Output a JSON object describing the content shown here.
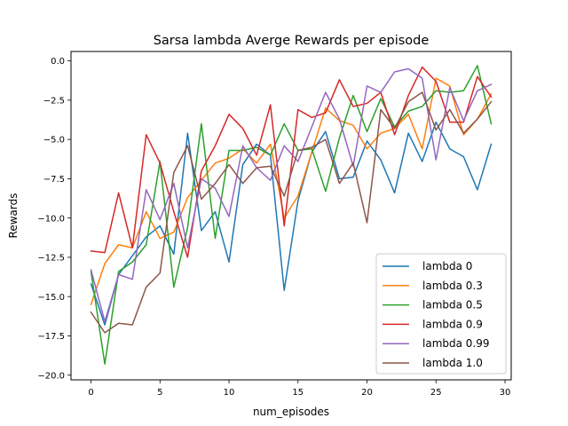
{
  "chart_data": {
    "type": "line",
    "title": "Sarsa lambda Averge Rewards per episode",
    "xlabel": "num_episodes",
    "ylabel": "Rewards",
    "xlim": [
      -1.45,
      30.45
    ],
    "ylim": [
      -20.3,
      0.6
    ],
    "xticks": [
      0,
      5,
      10,
      15,
      20,
      25,
      30
    ],
    "yticks": [
      0.0,
      -2.5,
      -5.0,
      -7.5,
      -10.0,
      -12.5,
      -15.0,
      -17.5,
      -20.0
    ],
    "xtick_labels": [
      "0",
      "5",
      "10",
      "15",
      "20",
      "25",
      "30"
    ],
    "ytick_labels": [
      "0.0",
      "−2.5",
      "−5.0",
      "−7.5",
      "−10.0",
      "−12.5",
      "−15.0",
      "−17.5",
      "−20.0"
    ],
    "grid": false,
    "legend_position": "lower right",
    "x": [
      0,
      1,
      2,
      3,
      4,
      5,
      6,
      7,
      8,
      9,
      10,
      11,
      12,
      13,
      14,
      15,
      16,
      17,
      18,
      19,
      20,
      21,
      22,
      23,
      24,
      25,
      26,
      27,
      28,
      29
    ],
    "series": [
      {
        "name": "lambda 0",
        "color": "#1f77b4",
        "values": [
          -14.2,
          -16.8,
          -13.6,
          -12.4,
          -11.2,
          -10.5,
          -12.3,
          -4.6,
          -10.8,
          -9.6,
          -12.8,
          -6.6,
          -5.3,
          -6.0,
          -14.6,
          -8.9,
          -5.8,
          -4.5,
          -7.5,
          -7.4,
          -5.1,
          -6.3,
          -8.4,
          -4.6,
          -6.4,
          -3.9,
          -5.6,
          -6.1,
          -8.2,
          -5.3
        ]
      },
      {
        "name": "lambda 0.3",
        "color": "#ff7f0e",
        "values": [
          -15.5,
          -12.9,
          -11.7,
          -11.9,
          -9.6,
          -11.3,
          -10.9,
          -8.7,
          -7.6,
          -6.5,
          -6.2,
          -5.6,
          -6.5,
          -5.3,
          -10.0,
          -8.6,
          -5.8,
          -3.0,
          -3.8,
          -4.1,
          -5.6,
          -4.6,
          -4.3,
          -3.4,
          -5.6,
          -1.1,
          -1.6,
          -4.7,
          -3.7,
          -2.1
        ]
      },
      {
        "name": "lambda 0.5",
        "color": "#2ca02c",
        "values": [
          -13.4,
          -19.3,
          -13.4,
          -12.8,
          -11.7,
          -6.4,
          -14.4,
          -10.6,
          -4.0,
          -11.3,
          -5.7,
          -5.7,
          -5.5,
          -6.0,
          -4.0,
          -5.7,
          -5.6,
          -8.3,
          -4.9,
          -2.2,
          -4.5,
          -2.4,
          -4.2,
          -3.2,
          -2.9,
          -1.9,
          -2.0,
          -1.9,
          -0.3,
          -4.0
        ]
      },
      {
        "name": "lambda 0.9",
        "color": "#d62728",
        "values": [
          -12.1,
          -12.2,
          -8.4,
          -11.9,
          -4.7,
          -6.5,
          -9.6,
          -12.5,
          -7.0,
          -5.4,
          -3.4,
          -4.3,
          -6.0,
          -2.8,
          -10.5,
          -3.1,
          -3.6,
          -3.3,
          -1.2,
          -2.9,
          -2.7,
          -2.0,
          -4.7,
          -2.2,
          -0.4,
          -1.3,
          -3.9,
          -3.9,
          -1.0,
          -2.3
        ]
      },
      {
        "name": "lambda 0.99",
        "color": "#9467bd",
        "values": [
          -13.3,
          -16.6,
          -13.6,
          -13.9,
          -8.2,
          -10.1,
          -7.8,
          -11.9,
          -7.5,
          -8.1,
          -9.9,
          -5.4,
          -6.8,
          -7.6,
          -5.4,
          -6.4,
          -4.2,
          -2.0,
          -3.7,
          -6.7,
          -1.6,
          -2.0,
          -0.7,
          -0.5,
          -1.1,
          -6.3,
          -1.7,
          -3.8,
          -1.9,
          -1.5
        ]
      },
      {
        "name": "lambda 1.0",
        "color": "#8c564b",
        "values": [
          -16.0,
          -17.3,
          -16.7,
          -16.8,
          -14.4,
          -13.5,
          -7.1,
          -5.4,
          -8.8,
          -7.8,
          -6.6,
          -7.8,
          -6.8,
          -6.7,
          -8.6,
          -5.7,
          -5.5,
          -5.0,
          -7.8,
          -6.5,
          -10.3,
          -3.1,
          -4.3,
          -2.6,
          -2.0,
          -4.4,
          -3.1,
          -4.6,
          -3.7,
          -2.6
        ]
      }
    ]
  }
}
